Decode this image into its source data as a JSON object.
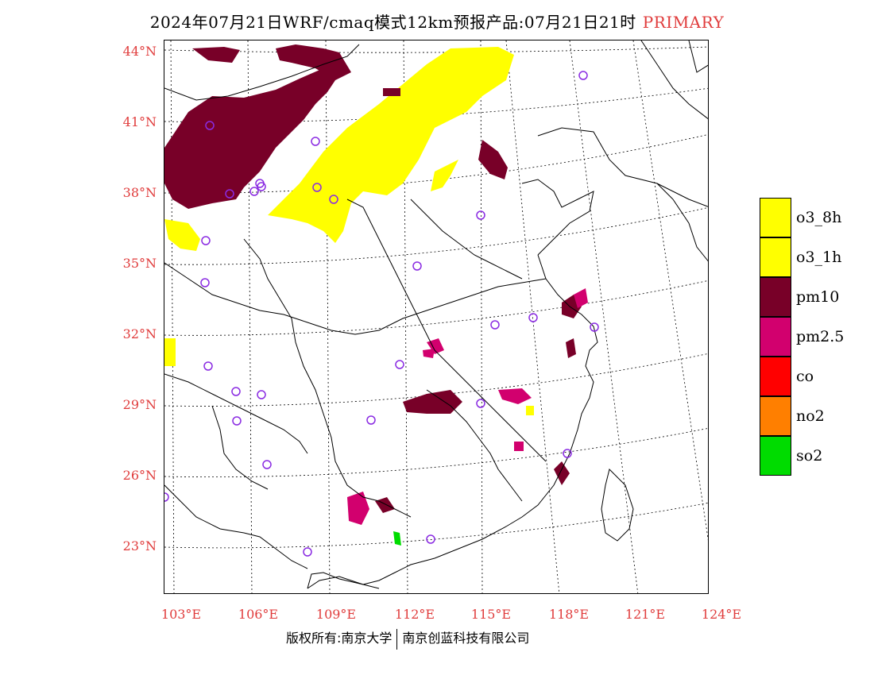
{
  "header": {
    "title": "2024年07月21日WRF/cmaq模式12km预报产品:07月21日21时",
    "primary_label": "PRIMARY"
  },
  "map": {
    "lat_labels": [
      "44°N",
      "41°N",
      "38°N",
      "35°N",
      "32°N",
      "29°N",
      "26°N",
      "23°N"
    ],
    "lon_labels": [
      "103°E",
      "106°E",
      "109°E",
      "112°E",
      "115°E",
      "118°E",
      "121°E",
      "124°E"
    ],
    "pollutant_colors": {
      "o3": "#ffff00",
      "pm10": "#780028",
      "pm25": "#d2006e",
      "so2": "#00dc00",
      "station": "#8a2be2"
    }
  },
  "legend": {
    "items": [
      {
        "label": "o3_8h",
        "color": "#ffff00"
      },
      {
        "label": "o3_1h",
        "color": "#ffff00"
      },
      {
        "label": "pm10",
        "color": "#780028"
      },
      {
        "label": "pm2.5",
        "color": "#d2006e"
      },
      {
        "label": "co",
        "color": "#ff0000"
      },
      {
        "label": "no2",
        "color": "#ff7f00"
      },
      {
        "label": "so2",
        "color": "#00dc00"
      }
    ]
  },
  "footer": {
    "left": "版权所有:南京大学",
    "right": "南京创蓝科技有限公司"
  }
}
